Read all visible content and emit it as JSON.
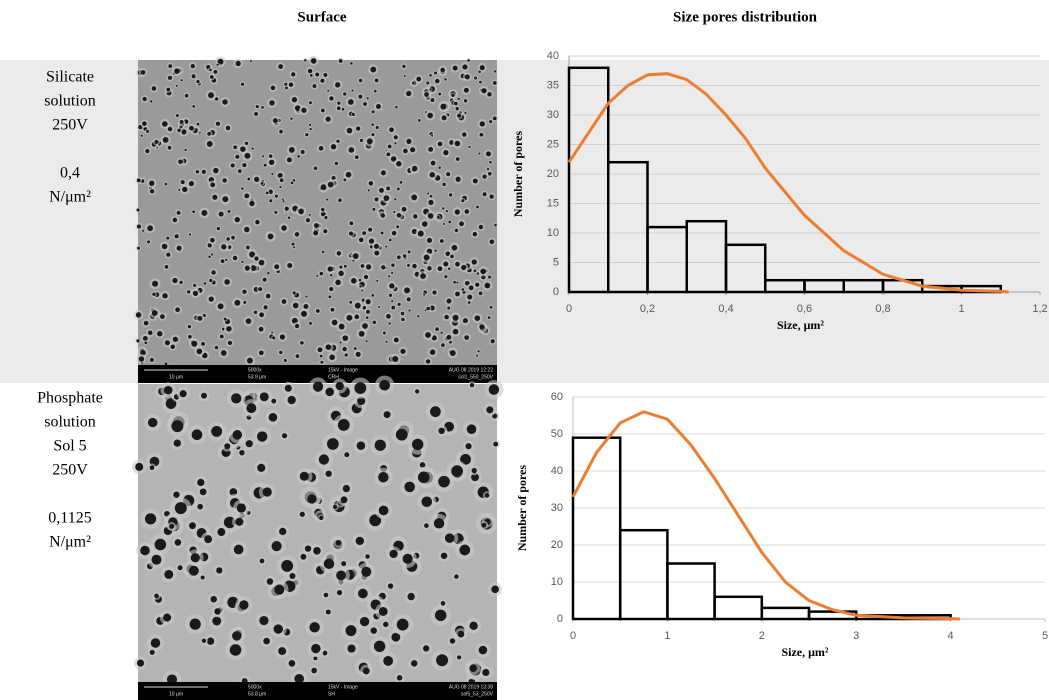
{
  "columns": [
    "Surface",
    "Size pores distribution"
  ],
  "rows": [
    {
      "lines": [
        "Silicate",
        "solution",
        "250V"
      ],
      "pressure": [
        "0,4",
        "N/μm²"
      ]
    },
    {
      "lines": [
        "Phosphate",
        "solution",
        "Sol 5",
        "250V"
      ],
      "pressure": [
        "0,1125",
        "N/μm²"
      ]
    }
  ],
  "images": [
    {
      "scale": "10 μm",
      "mag": "5000x",
      "hfw": "53.9 μm",
      "mode": "15kV - Image",
      "det": "CRH",
      "date": "AUG 08 2019 12:22",
      "label": "sol1_550_250V"
    },
    {
      "scale": "10 μm",
      "mag": "5000x",
      "hfw": "53.8 μm",
      "mode": "15kV - Image",
      "det": "SH",
      "date": "AUG 08 2019 13:38",
      "label": "sol5_53_250V"
    }
  ],
  "chart_data": [
    {
      "type": "histogram",
      "x_label": "Size, μm²",
      "y_label": "Number of pores",
      "color": "#000000",
      "grid": true,
      "bins": [
        0,
        0.1,
        0.2,
        0.3,
        0.4,
        0.5,
        0.6,
        0.7,
        0.8,
        0.9,
        1.0,
        1.1
      ],
      "values": [
        38,
        22,
        11,
        12,
        8,
        2,
        2,
        2,
        2,
        1,
        1
      ],
      "fit": {
        "color": "#ed7d31",
        "x": [
          0,
          0.05,
          0.1,
          0.15,
          0.2,
          0.25,
          0.3,
          0.35,
          0.4,
          0.45,
          0.5,
          0.6,
          0.7,
          0.8,
          0.9,
          1.0,
          1.1,
          1.12
        ],
        "values": [
          22,
          27,
          32,
          35,
          36.8,
          37,
          36,
          33.5,
          30,
          26,
          21,
          13,
          7,
          3,
          1,
          0.3,
          0.1,
          0
        ]
      },
      "xlim": [
        0,
        1.2
      ],
      "xticks": [
        0,
        {
          "value": 0.2,
          "label": "0,2"
        },
        {
          "value": 0.4,
          "label": "0,4"
        },
        {
          "value": 0.6,
          "label": "0,6"
        },
        {
          "value": 0.8,
          "label": "0,8"
        },
        1,
        {
          "value": 1.2,
          "label": "1,2"
        }
      ],
      "ylim": [
        0,
        40
      ],
      "yticks": [
        0,
        5,
        10,
        15,
        20,
        25,
        30,
        35,
        40
      ]
    },
    {
      "type": "histogram",
      "x_label": "Size, μm²",
      "y_label": "Number of pores",
      "color": "#000000",
      "grid": true,
      "bins": [
        0,
        0.5,
        1,
        1.5,
        2,
        2.5,
        3,
        3.5,
        4
      ],
      "values": [
        49,
        24,
        15,
        6,
        3,
        2,
        1,
        1
      ],
      "fit": {
        "color": "#ed7d31",
        "x": [
          0,
          0.25,
          0.5,
          0.75,
          1,
          1.25,
          1.5,
          1.75,
          2,
          2.25,
          2.5,
          2.75,
          3,
          3.5,
          4,
          4.1
        ],
        "values": [
          33,
          45,
          53,
          56,
          54,
          47,
          38,
          28,
          18,
          10,
          5,
          2.5,
          1,
          0.3,
          0.1,
          0
        ]
      },
      "xlim": [
        0,
        5
      ],
      "xticks": [
        0,
        1,
        2,
        3,
        4,
        5
      ],
      "ylim": [
        0,
        60
      ],
      "yticks": [
        0,
        10,
        20,
        30,
        40,
        50,
        60
      ]
    }
  ]
}
